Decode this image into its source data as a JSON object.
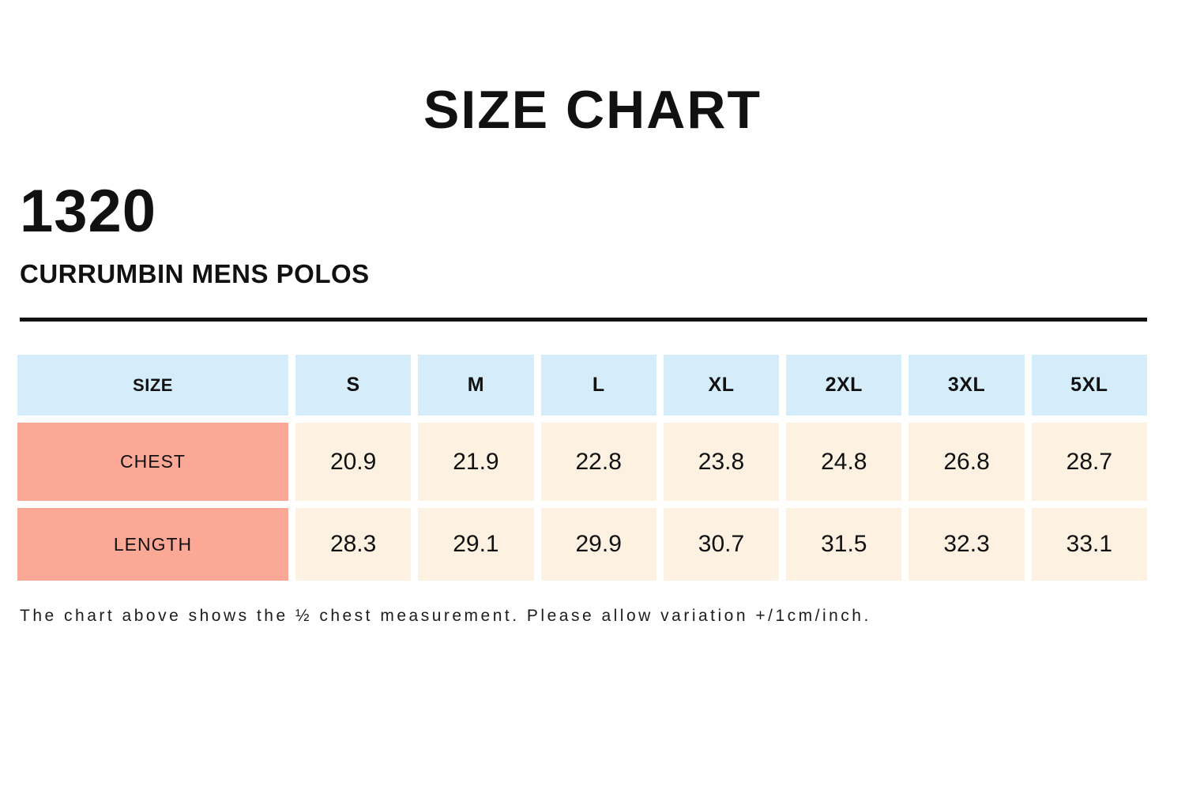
{
  "page": {
    "title": "SIZE CHART",
    "product_code": "1320",
    "product_name": "CURRUMBIN MENS POLOS",
    "footnote": "The chart above shows the ½ chest measurement. Please allow variation +/1cm/inch."
  },
  "colors": {
    "header_bg": "#d5edfa",
    "row_label_bg": "#fba897",
    "value_bg": "#fdf2e2",
    "text": "#111111",
    "divider": "#111111"
  },
  "chart_data": {
    "type": "table",
    "title": "SIZE CHART",
    "columns": [
      "SIZE",
      "S",
      "M",
      "L",
      "XL",
      "2XL",
      "3XL",
      "5XL"
    ],
    "rows": [
      {
        "label": "CHEST",
        "values": [
          "20.9",
          "21.9",
          "22.8",
          "23.8",
          "24.8",
          "26.8",
          "28.7"
        ]
      },
      {
        "label": "LENGTH",
        "values": [
          "28.3",
          "29.1",
          "29.9",
          "30.7",
          "31.5",
          "32.3",
          "33.1"
        ]
      }
    ],
    "units_note": "half chest measurement, inches; variation +/1cm/inch"
  }
}
